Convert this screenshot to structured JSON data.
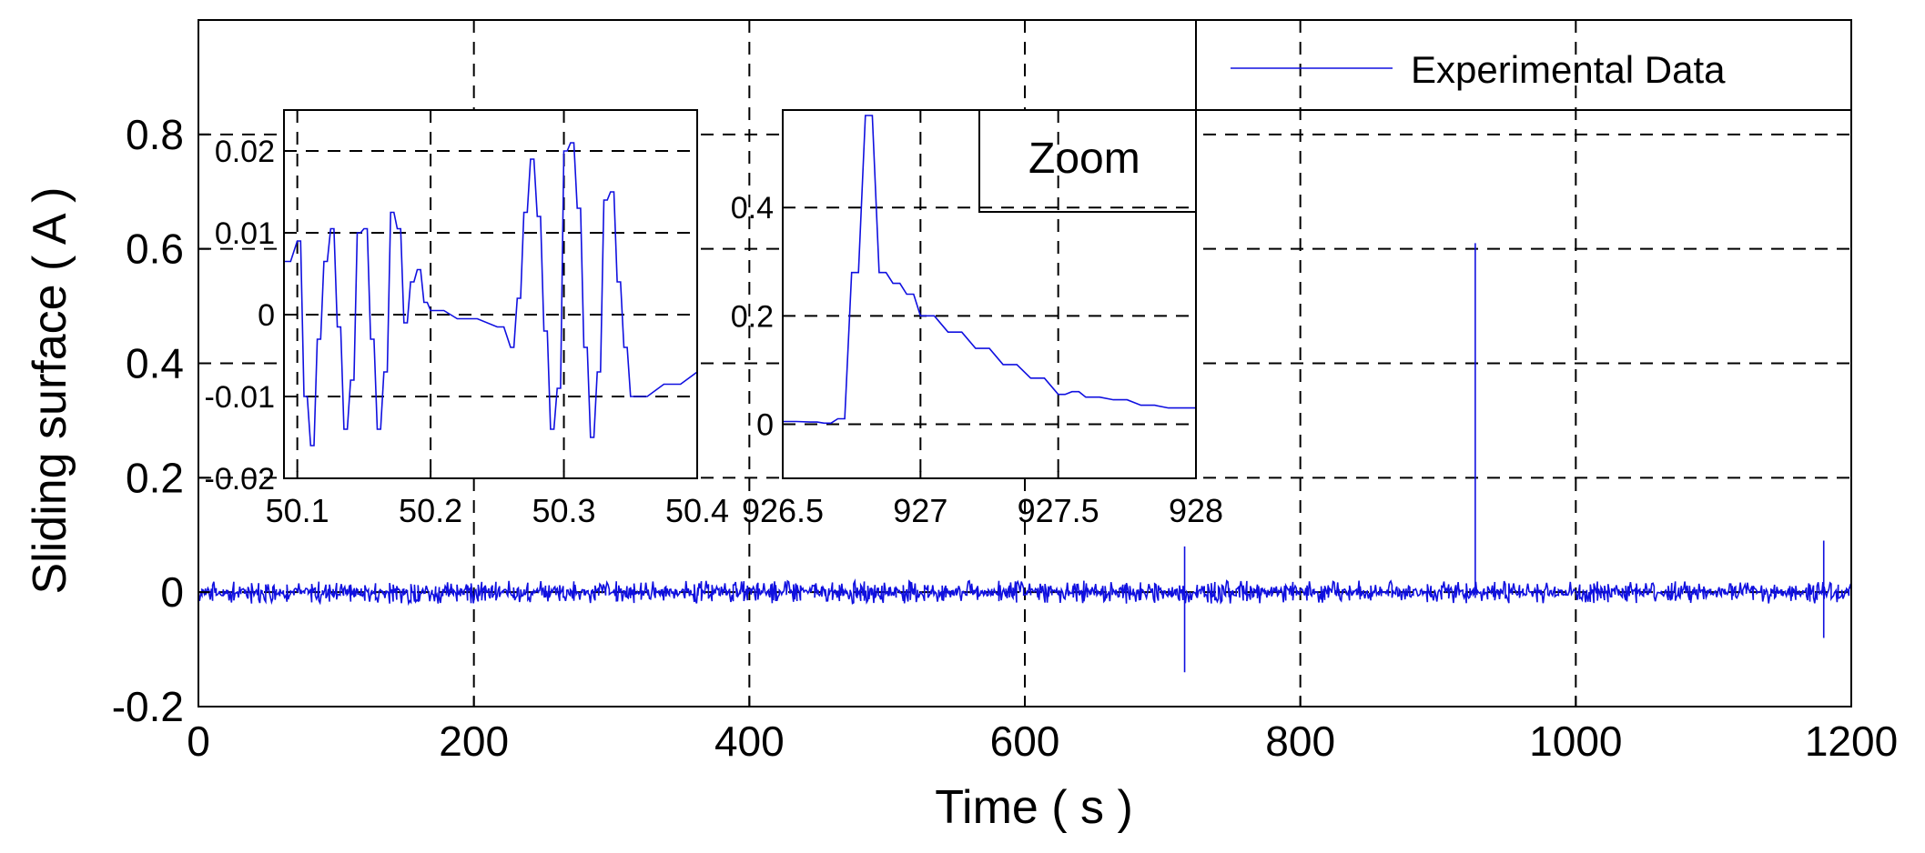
{
  "chart_data": [
    {
      "type": "line",
      "role": "main",
      "xlabel": "Time ( s )",
      "ylabel": "Sliding surface ( A )",
      "xlim": [
        0,
        1200
      ],
      "ylim": [
        -0.2,
        1.0
      ],
      "xticks": [
        0,
        200,
        400,
        600,
        800,
        1000,
        1200
      ],
      "xtick_labels": [
        "0",
        "200",
        "400",
        "600",
        "800",
        "1000",
        "1200"
      ],
      "yticks": [
        -0.2,
        0,
        0.2,
        0.4,
        0.6,
        0.8
      ],
      "ytick_labels": [
        "-0.2",
        "0",
        "0.2",
        "0.4",
        "0.6",
        "0.8"
      ],
      "grid": true,
      "legend": {
        "position": "top-right",
        "entries": [
          "Experimental Data"
        ]
      },
      "series": [
        {
          "name": "Experimental Data",
          "color": "#1010e0",
          "description_of_signal": "noise band approx ±0.02 around 0",
          "noise_amplitude": 0.02,
          "spikes": [
            {
              "x": 716,
              "min": -0.14,
              "max": 0.08
            },
            {
              "x": 927,
              "min": -0.01,
              "max": 0.61
            },
            {
              "x": 1180,
              "min": -0.08,
              "max": 0.09
            }
          ]
        }
      ]
    },
    {
      "type": "line",
      "role": "inset-1",
      "xlim": [
        50.09,
        50.4
      ],
      "ylim": [
        -0.02,
        0.025
      ],
      "xticks": [
        50.1,
        50.2,
        50.3,
        50.4
      ],
      "xtick_labels": [
        "50.1",
        "50.2",
        "50.3",
        "50.4"
      ],
      "yticks": [
        -0.02,
        -0.01,
        0,
        0.01,
        0.02
      ],
      "ytick_labels": [
        "-0.02",
        "-0.01",
        "0",
        "0.01",
        "0.02"
      ],
      "grid": true,
      "series": [
        {
          "name": "Experimental Data",
          "x": [
            50.09,
            50.1,
            50.105,
            50.11,
            50.115,
            50.12,
            50.125,
            50.13,
            50.135,
            50.14,
            50.145,
            50.15,
            50.155,
            50.16,
            50.165,
            50.17,
            50.175,
            50.18,
            50.185,
            50.19,
            50.195,
            50.2,
            50.22,
            50.25,
            50.26,
            50.265,
            50.27,
            50.275,
            50.28,
            50.285,
            50.29,
            50.295,
            50.3,
            50.305,
            50.31,
            50.315,
            50.32,
            50.325,
            50.33,
            50.335,
            50.34,
            50.345,
            50.35,
            50.375,
            50.4
          ],
          "y": [
            0.0065,
            0.009,
            -0.01,
            -0.016,
            -0.003,
            0.0065,
            0.0105,
            -0.0015,
            -0.014,
            -0.008,
            0.01,
            0.0105,
            -0.003,
            -0.014,
            -0.007,
            0.0125,
            0.0105,
            -0.001,
            0.004,
            0.0055,
            0.0015,
            0.0005,
            -0.0005,
            -0.0015,
            -0.004,
            0.002,
            0.0125,
            0.019,
            0.012,
            -0.002,
            -0.014,
            -0.009,
            0.02,
            0.021,
            0.013,
            -0.004,
            -0.015,
            -0.007,
            0.014,
            0.015,
            0.004,
            -0.004,
            -0.01,
            -0.0085,
            -0.007
          ]
        }
      ]
    },
    {
      "type": "line",
      "role": "inset-2",
      "xlim": [
        926.5,
        928
      ],
      "ylim": [
        -0.1,
        0.58
      ],
      "xticks": [
        926.5,
        927,
        927.5,
        928
      ],
      "xtick_labels": [
        "926.5",
        "927",
        "927.5",
        "928"
      ],
      "yticks": [
        0,
        0.2,
        0.4
      ],
      "ytick_labels": [
        "0",
        "0.2",
        "0.4"
      ],
      "grid": true,
      "legend": {
        "position": "top-right",
        "entries": [
          "Zoom"
        ]
      },
      "series": [
        {
          "name": "Experimental Data",
          "x": [
            926.5,
            926.6,
            926.65,
            926.7,
            926.75,
            926.8,
            926.85,
            926.9,
            926.95,
            927,
            927.1,
            927.2,
            927.3,
            927.4,
            927.5,
            927.55,
            927.6,
            927.7,
            927.8,
            927.9,
            928
          ],
          "y": [
            0.005,
            0.004,
            0.002,
            0.01,
            0.28,
            0.57,
            0.28,
            0.26,
            0.24,
            0.2,
            0.17,
            0.14,
            0.11,
            0.085,
            0.055,
            0.06,
            0.05,
            0.045,
            0.035,
            0.03,
            0.03
          ]
        }
      ]
    }
  ]
}
